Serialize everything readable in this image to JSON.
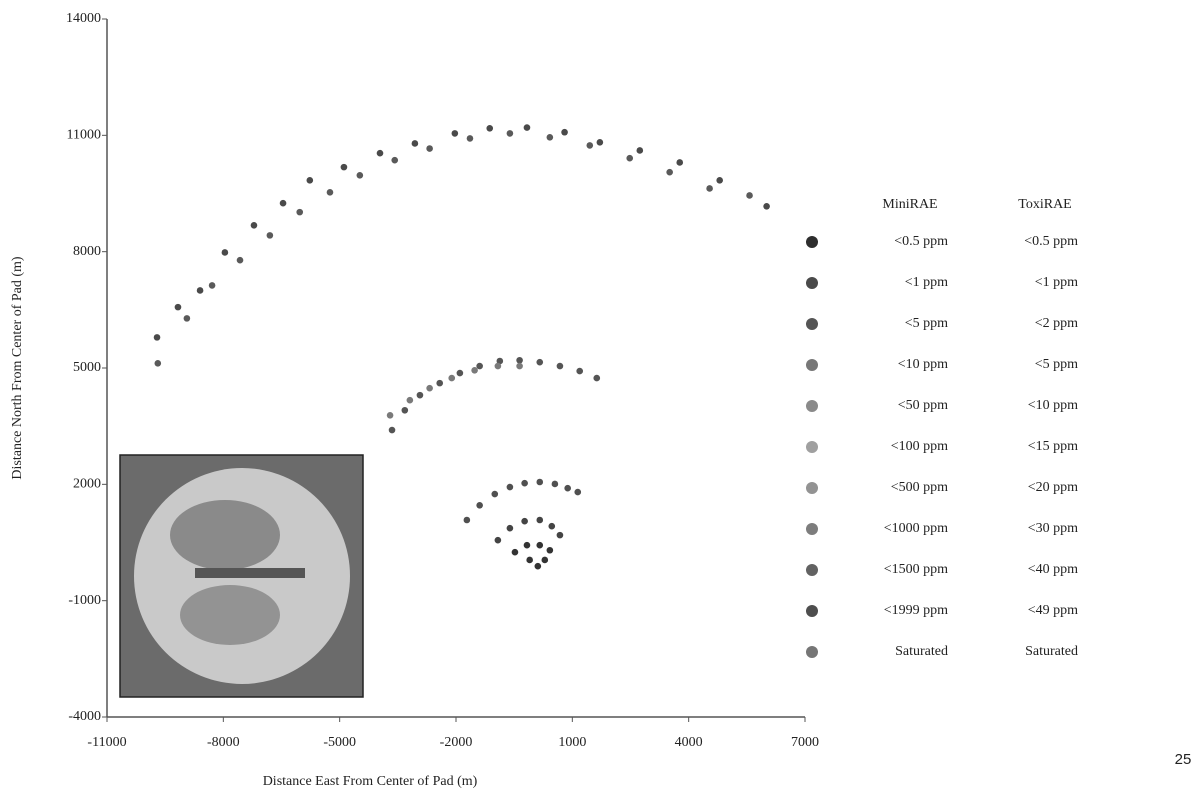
{
  "chart_data": {
    "type": "scatter",
    "xlabel": "Distance East From Center of Pad (m)",
    "ylabel": "Distance North From Center of Pad (m)",
    "xlim": [
      -11000,
      7000
    ],
    "xticks": [
      -11000,
      -8000,
      -5000,
      -2000,
      1000,
      4000,
      7000
    ],
    "ylim": [
      -4000,
      14000
    ],
    "yticks": [
      -4000,
      -1000,
      2000,
      5000,
      8000,
      11000,
      14000
    ],
    "series": [
      {
        "color": "#4a4a4a",
        "x": [
          -9710,
          -9170,
          -8600,
          -7960,
          -7210,
          -6460,
          -5770,
          -4890,
          -3960,
          -3060,
          -2030,
          -1130,
          -170,
          800,
          1710,
          2740,
          3770,
          4800,
          6010
        ],
        "values": [
          5790,
          6570,
          7000,
          7980,
          8680,
          9250,
          9840,
          10180,
          10540,
          10790,
          11050,
          11180,
          11200,
          11080,
          10820,
          10610,
          10300,
          9840,
          9170
        ]
      },
      {
        "color": "#5a5a5a",
        "x": [
          -9690,
          -8940,
          -8290,
          -7570,
          -6800,
          -6030,
          -5250,
          -4480,
          -3580,
          -2680,
          -1640,
          -610,
          420,
          1450,
          2480,
          3510,
          4540,
          5570
        ],
        "values": [
          5120,
          6280,
          7130,
          7780,
          8420,
          9020,
          9530,
          9970,
          10360,
          10660,
          10920,
          11050,
          10950,
          10740,
          10410,
          10050,
          9630,
          9450
        ]
      },
      {
        "color": "#555555",
        "x": [
          -3650,
          -3320,
          -2930,
          -2420,
          -1900,
          -1390,
          -870,
          -360,
          160,
          680,
          1190,
          1630
        ],
        "values": [
          3400,
          3910,
          4300,
          4610,
          4870,
          5050,
          5180,
          5200,
          5150,
          5050,
          4920,
          4740
        ]
      },
      {
        "color": "#7a7a7a",
        "x": [
          -3700,
          -3190,
          -2680,
          -2110,
          -1520,
          -920,
          -360
        ],
        "values": [
          3780,
          4170,
          4480,
          4740,
          4940,
          5050,
          5050
        ]
      },
      {
        "color": "#505050",
        "x": [
          -1720,
          -1390,
          -1000,
          -610,
          -230,
          160,
          550,
          880,
          1140
        ],
        "values": [
          1080,
          1460,
          1750,
          1930,
          2030,
          2060,
          2010,
          1900,
          1800
        ]
      },
      {
        "color": "#444444",
        "x": [
          -920,
          -610,
          -230,
          160,
          470,
          680
        ],
        "values": [
          560,
          870,
          1050,
          1080,
          920,
          690
        ]
      },
      {
        "color": "#333333",
        "x": [
          -480,
          -170,
          160,
          420,
          -100,
          110,
          290
        ],
        "values": [
          250,
          430,
          430,
          300,
          50,
          -110,
          50
        ]
      }
    ],
    "legend": {
      "headers": [
        "MiniRAE",
        "ToxiRAE"
      ],
      "rows": [
        {
          "color": "#2e2e2e",
          "minirae": "<0.5 ppm",
          "toxirae": "<0.5 ppm"
        },
        {
          "color": "#4a4a4a",
          "minirae": "<1 ppm",
          "toxirae": "<1 ppm"
        },
        {
          "color": "#555555",
          "minirae": "<5 ppm",
          "toxirae": "<2 ppm"
        },
        {
          "color": "#777777",
          "minirae": "<10 ppm",
          "toxirae": "<5 ppm"
        },
        {
          "color": "#8a8a8a",
          "minirae": "<50 ppm",
          "toxirae": "<10 ppm"
        },
        {
          "color": "#a0a0a0",
          "minirae": "<100 ppm",
          "toxirae": "<15 ppm"
        },
        {
          "color": "#939393",
          "minirae": "<500 ppm",
          "toxirae": "<20 ppm"
        },
        {
          "color": "#7d7d7d",
          "minirae": "<1000 ppm",
          "toxirae": "<30 ppm"
        },
        {
          "color": "#626262",
          "minirae": "<1500 ppm",
          "toxirae": "<40 ppm"
        },
        {
          "color": "#4e4e4e",
          "minirae": "<1999 ppm",
          "toxirae": "<49 ppm"
        },
        {
          "color": "#767676",
          "minirae": "Saturated",
          "toxirae": "Saturated"
        }
      ]
    }
  },
  "page_number": "25"
}
